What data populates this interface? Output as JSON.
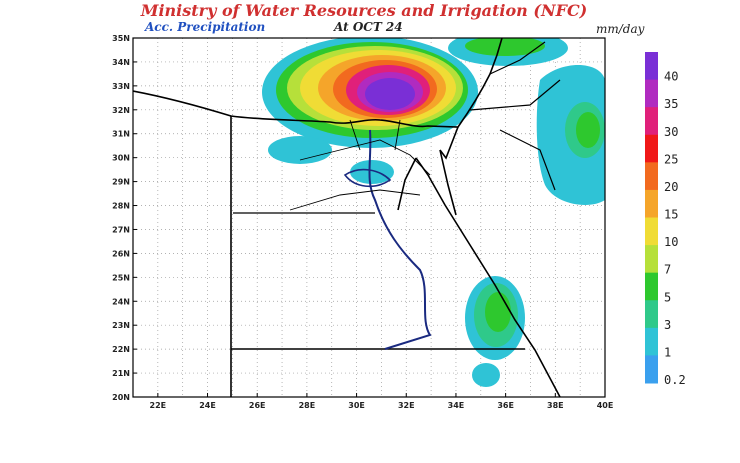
{
  "map": {
    "title": "Ministry of Water Resources and Irrigation (NFC)",
    "subtitle": "Acc. Precipitation",
    "date": "At OCT 24",
    "units": "mm/day",
    "latitude_labels": [
      "35N",
      "34N",
      "33N",
      "32N",
      "31N",
      "30N",
      "29N",
      "28N",
      "27N",
      "26N",
      "25N",
      "24N",
      "23N",
      "22N",
      "21N",
      "20N"
    ],
    "longitude_labels": [
      "22E",
      "24E",
      "26E",
      "28E",
      "30E",
      "32E",
      "34E",
      "36E",
      "38E",
      "40E"
    ],
    "legend": [
      {
        "label": "40",
        "color": "#7a2fd6"
      },
      {
        "label": "35",
        "color": "#b02bc0"
      },
      {
        "label": "30",
        "color": "#e0207a"
      },
      {
        "label": "25",
        "color": "#f01818"
      },
      {
        "label": "20",
        "color": "#f26a1f"
      },
      {
        "label": "15",
        "color": "#f5a52a"
      },
      {
        "label": "10",
        "color": "#f0dc35"
      },
      {
        "label": "7",
        "color": "#b6e03a"
      },
      {
        "label": "5",
        "color": "#2ec82e"
      },
      {
        "label": "3",
        "color": "#2fc98a"
      },
      {
        "label": "1",
        "color": "#2fc3d6"
      },
      {
        "label": "0.2",
        "color": "#3aa0ee"
      }
    ]
  }
}
